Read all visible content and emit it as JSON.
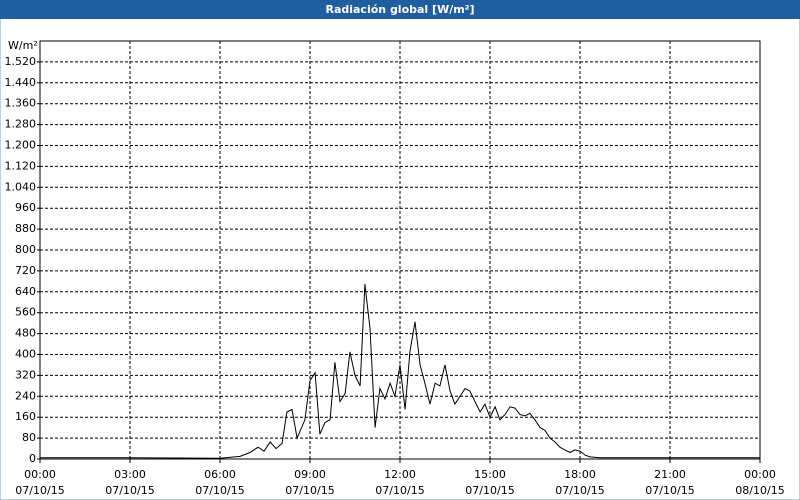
{
  "chart_data": {
    "type": "line",
    "title": "Radiación global [W/m²]",
    "y_label": "W/m²",
    "color": "#000000",
    "grid": true,
    "xlim": [
      0,
      24
    ],
    "ylim": [
      0,
      1600
    ],
    "xticks": [
      {
        "value": 0,
        "label": [
          "00:00",
          "07/10/15"
        ]
      },
      {
        "value": 3,
        "label": [
          "03:00",
          "07/10/15"
        ]
      },
      {
        "value": 6,
        "label": [
          "06:00",
          "07/10/15"
        ]
      },
      {
        "value": 9,
        "label": [
          "09:00",
          "07/10/15"
        ]
      },
      {
        "value": 12,
        "label": [
          "12:00",
          "07/10/15"
        ]
      },
      {
        "value": 15,
        "label": [
          "15:00",
          "07/10/15"
        ]
      },
      {
        "value": 18,
        "label": [
          "18:00",
          "07/10/15"
        ]
      },
      {
        "value": 21,
        "label": [
          "21:00",
          "07/10/15"
        ]
      },
      {
        "value": 24,
        "label": [
          "00:00",
          "08/10/15"
        ]
      }
    ],
    "yticks": [
      0,
      80,
      160,
      240,
      320,
      400,
      480,
      560,
      640,
      720,
      800,
      880,
      960,
      {
        "value": 1040,
        "label": "1.040"
      },
      {
        "value": 1120,
        "label": "1.120"
      },
      {
        "value": 1200,
        "label": "1.200"
      },
      {
        "value": 1280,
        "label": "1.280"
      },
      {
        "value": 1360,
        "label": "1.360"
      },
      {
        "value": 1440,
        "label": "1.440"
      },
      {
        "value": 1520,
        "label": "1.520"
      }
    ],
    "x": [
      0,
      3,
      6,
      6.67,
      7,
      7.27,
      7.47,
      7.67,
      7.87,
      8.07,
      8.23,
      8.4,
      8.57,
      8.83,
      9,
      9.17,
      9.33,
      9.5,
      9.67,
      9.83,
      10,
      10.17,
      10.33,
      10.5,
      10.67,
      10.83,
      11,
      11.17,
      11.33,
      11.5,
      11.67,
      11.83,
      12,
      12.17,
      12.33,
      12.5,
      12.67,
      12.83,
      13,
      13.17,
      13.33,
      13.5,
      13.67,
      13.83,
      14,
      14.17,
      14.33,
      14.5,
      14.67,
      14.83,
      15,
      15.17,
      15.33,
      15.5,
      15.67,
      15.83,
      16,
      16.17,
      16.33,
      16.5,
      16.67,
      16.83,
      17,
      17.17,
      17.33,
      17.5,
      17.67,
      17.83,
      18,
      18.17,
      18.33,
      18.67,
      21,
      24
    ],
    "values": [
      5,
      5,
      3,
      10,
      25,
      45,
      30,
      65,
      40,
      60,
      180,
      190,
      80,
      150,
      300,
      330,
      95,
      140,
      150,
      370,
      220,
      250,
      410,
      320,
      280,
      670,
      500,
      120,
      270,
      230,
      290,
      240,
      360,
      190,
      410,
      525,
      360,
      290,
      210,
      290,
      280,
      360,
      260,
      210,
      240,
      270,
      260,
      220,
      180,
      210,
      160,
      200,
      150,
      170,
      200,
      195,
      170,
      165,
      175,
      150,
      120,
      110,
      80,
      65,
      45,
      35,
      25,
      35,
      30,
      15,
      8,
      5,
      5,
      5
    ]
  }
}
